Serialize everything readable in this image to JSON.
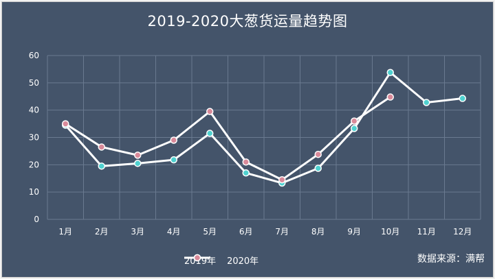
{
  "chart_data": {
    "type": "line",
    "title": "2019-2020大葱货运量趋势图",
    "categories": [
      "1月",
      "2月",
      "3月",
      "4月",
      "5月",
      "6月",
      "7月",
      "8月",
      "9月",
      "10月",
      "11月",
      "12月"
    ],
    "ylim": [
      0,
      60
    ],
    "yticks": [
      0,
      10,
      20,
      30,
      40,
      50,
      60
    ],
    "grid": true,
    "legend_position": "bottom",
    "series": [
      {
        "name": "2019年",
        "color": "#4fd1d0",
        "values": [
          34.5,
          19.5,
          20.5,
          21.8,
          31.5,
          17,
          13.3,
          18.7,
          33.3,
          53.8,
          42.8,
          44.3
        ]
      },
      {
        "name": "2020年",
        "color": "#d98a9a",
        "values": [
          35,
          26.5,
          23.5,
          29,
          39.5,
          21,
          14.5,
          23.8,
          36,
          44.8,
          null,
          null
        ]
      }
    ],
    "source": "数据来源：满帮"
  }
}
